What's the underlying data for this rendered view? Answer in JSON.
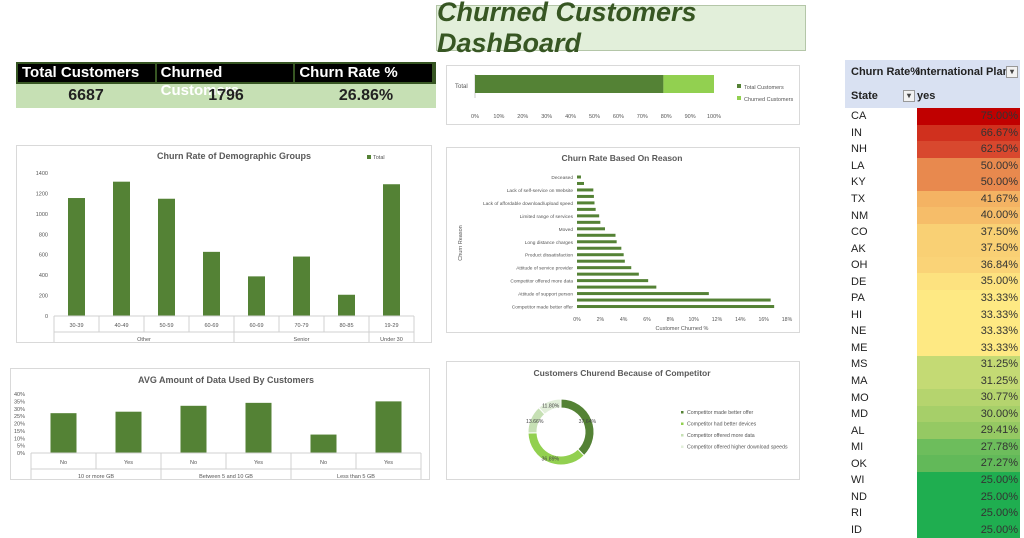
{
  "title": "Churned Customers DashBoard",
  "kpi": {
    "headers": [
      "Total Customers",
      "Churned Customers",
      "Churn Rate %"
    ],
    "values": [
      "6687",
      "1796",
      "26.86%"
    ]
  },
  "colors": {
    "dark_green": "#548235",
    "light_green": "#92d050",
    "title_green": "#375623"
  },
  "chart_data": [
    {
      "type": "bar",
      "id": "stacked",
      "orientation": "horizontal",
      "stacked": "percent",
      "categories": [
        "Total"
      ],
      "series": [
        {
          "name": "Total Customers",
          "values": [
            6687
          ],
          "color": "#548235"
        },
        {
          "name": "Churned Customers",
          "values": [
            1796
          ],
          "color": "#92d050"
        }
      ],
      "xticks": [
        "0%",
        "10%",
        "20%",
        "30%",
        "40%",
        "50%",
        "60%",
        "70%",
        "80%",
        "90%",
        "100%"
      ],
      "legend": "right"
    },
    {
      "type": "bar",
      "id": "demo",
      "title": "Churn Rate of Demographic Groups",
      "legend_entries": [
        "Total"
      ],
      "legend": "top-right",
      "categories": [
        "30-39",
        "40-49",
        "50-59",
        "60-69",
        "60-69",
        "70-79",
        "80-85",
        "19-29"
      ],
      "groups": [
        {
          "name": "Other",
          "span": 4
        },
        {
          "name": "Senior",
          "span": 3
        },
        {
          "name": "Under 30",
          "span": 1
        }
      ],
      "values": [
        1155,
        1315,
        1148,
        628,
        388,
        582,
        208,
        1290
      ],
      "ylim": [
        0,
        1400
      ],
      "yticks": [
        "0",
        "200",
        "400",
        "600",
        "800",
        "1000",
        "1200",
        "1400"
      ]
    },
    {
      "type": "bar",
      "id": "reason",
      "orientation": "horizontal",
      "title": "Churn Rate Based On Reason",
      "xlabel": "Customer Churned %",
      "ylabel": "Churn Reason",
      "categories": [
        "Deceased",
        "",
        "Lack of self-service on Website",
        "",
        "Lack of affordable download/upload speed",
        "",
        "Limited range of services",
        "",
        "Moved",
        "",
        "Long distance charges",
        "",
        "Product dissatisfaction",
        "",
        "Attitude of service provider",
        "",
        "Competitor offered more data",
        "",
        "Attitude of support person",
        "",
        "Competitor made better offer"
      ],
      "values": [
        0.34,
        0.6,
        1.4,
        1.45,
        1.5,
        1.6,
        1.9,
        2.0,
        2.4,
        3.3,
        3.4,
        3.8,
        4.0,
        4.1,
        4.65,
        5.3,
        6.1,
        6.8,
        11.3,
        16.6,
        16.9
      ],
      "xlim": [
        0,
        18
      ],
      "xticks": [
        "0%",
        "2%",
        "4%",
        "6%",
        "8%",
        "10%",
        "12%",
        "14%",
        "16%",
        "18%"
      ]
    },
    {
      "type": "bar",
      "id": "usage",
      "title": "AVG Amount of Data Used By Customers",
      "categories": [
        "No",
        "Yes",
        "No",
        "Yes",
        "No",
        "Yes"
      ],
      "groups": [
        {
          "name": "10 or more GB",
          "span": 2
        },
        {
          "name": "Between 5 and 10 GB",
          "span": 2
        },
        {
          "name": "Less than 5 GB",
          "span": 2
        }
      ],
      "values": [
        27,
        28,
        32,
        34,
        12.5,
        35
      ],
      "ylim": [
        0,
        40
      ],
      "yticks": [
        "0%",
        "5%",
        "10%",
        "15%",
        "20%",
        "25%",
        "30%",
        "35%",
        "40%"
      ]
    },
    {
      "type": "pie",
      "id": "donut",
      "title": "Customers Churend Because of Competitor",
      "labels": [
        "Competitor made better offer",
        "Competitor had better devices",
        "Competitor offered more data",
        "Competitor offered higher download speeds"
      ],
      "values": [
        37.64,
        36.89,
        13.66,
        11.8
      ],
      "value_labels": [
        "37.64%",
        "36.89%",
        "13.66%",
        "11.80%"
      ],
      "colors": [
        "#548235",
        "#92d050",
        "#c6e0b4",
        "#e2efda"
      ],
      "legend": "right"
    }
  ],
  "states": {
    "header1": "Churn Rate%",
    "header2": "International Plan",
    "row_label": "State",
    "col_value": "yes",
    "rows": [
      [
        "CA",
        "75.00%",
        "#c00000"
      ],
      [
        "IN",
        "66.67%",
        "#d0301e"
      ],
      [
        "NH",
        "62.50%",
        "#d8482e"
      ],
      [
        "LA",
        "50.00%",
        "#e8894e"
      ],
      [
        "KY",
        "50.00%",
        "#e8894e"
      ],
      [
        "TX",
        "41.67%",
        "#f4b363"
      ],
      [
        "NM",
        "40.00%",
        "#f6bd69"
      ],
      [
        "CO",
        "37.50%",
        "#f9d074"
      ],
      [
        "AK",
        "37.50%",
        "#f9d074"
      ],
      [
        "OH",
        "36.84%",
        "#fad377"
      ],
      [
        "DE",
        "35.00%",
        "#fde27f"
      ],
      [
        "PA",
        "33.33%",
        "#fee983"
      ],
      [
        "HI",
        "33.33%",
        "#fee983"
      ],
      [
        "NE",
        "33.33%",
        "#fee983"
      ],
      [
        "ME",
        "33.33%",
        "#fee983"
      ],
      [
        "MS",
        "31.25%",
        "#c4da74"
      ],
      [
        "MA",
        "31.25%",
        "#c4da74"
      ],
      [
        "MO",
        "30.77%",
        "#b5d46e"
      ],
      [
        "MD",
        "30.00%",
        "#a6cf69"
      ],
      [
        "AL",
        "29.41%",
        "#95c963"
      ],
      [
        "MI",
        "27.78%",
        "#6dbd5c"
      ],
      [
        "OK",
        "27.27%",
        "#62b959"
      ],
      [
        "WI",
        "25.00%",
        "#1fae50"
      ],
      [
        "ND",
        "25.00%",
        "#1fae50"
      ],
      [
        "RI",
        "25.00%",
        "#1fae50"
      ],
      [
        "ID",
        "25.00%",
        "#1fae50"
      ]
    ]
  }
}
